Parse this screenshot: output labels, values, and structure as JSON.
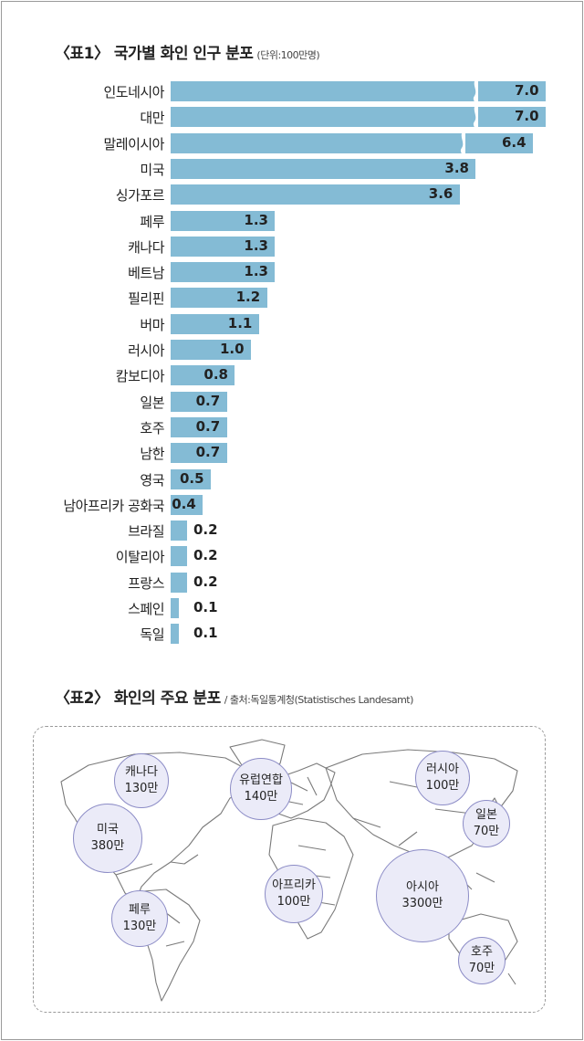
{
  "chart_data": [
    {
      "type": "bar",
      "title": "〈표1〉 국가별 화인 인구 분포",
      "unit_note": "(단위:100만명)",
      "categories": [
        "인도네시아",
        "대만",
        "말레이시아",
        "미국",
        "싱가포르",
        "페루",
        "캐나다",
        "베트남",
        "필리핀",
        "버마",
        "러시아",
        "캄보디아",
        "일본",
        "호주",
        "남한",
        "영국",
        "남아프리카 공화국",
        "브라질",
        "이탈리아",
        "프랑스",
        "스페인",
        "독일"
      ],
      "values": [
        7.0,
        7.0,
        6.4,
        3.8,
        3.6,
        1.3,
        1.3,
        1.3,
        1.2,
        1.1,
        1.0,
        0.8,
        0.7,
        0.7,
        0.7,
        0.5,
        0.4,
        0.2,
        0.2,
        0.2,
        0.1,
        0.1
      ],
      "value_labels": [
        "7.0",
        "7.0",
        "6.4",
        "3.8",
        "3.6",
        "1.3",
        "1.3",
        "1.3",
        "1.2",
        "1.1",
        "1.0",
        "0.8",
        "0.7",
        "0.7",
        "0.7",
        "0.5",
        "0.4",
        "0.2",
        "0.2",
        "0.2",
        "0.1",
        "0.1"
      ],
      "axis_break": true,
      "bar_color": "#84bbd5"
    },
    {
      "type": "bubble-map",
      "title": "〈표2〉 화인의 주요 분포",
      "source": "/ 출처:독일통계청(Statistisches Landesamt)",
      "regions": [
        {
          "name": "캐나다",
          "value": "130만"
        },
        {
          "name": "미국",
          "value": "380만"
        },
        {
          "name": "페루",
          "value": "130만"
        },
        {
          "name": "유럽연합",
          "value": "140만"
        },
        {
          "name": "아프리카",
          "value": "100만"
        },
        {
          "name": "러시아",
          "value": "100만"
        },
        {
          "name": "일본",
          "value": "70만"
        },
        {
          "name": "아시아",
          "value": "3300만"
        },
        {
          "name": "호주",
          "value": "70만"
        }
      ],
      "bubble_color": "#ebebf8"
    }
  ]
}
